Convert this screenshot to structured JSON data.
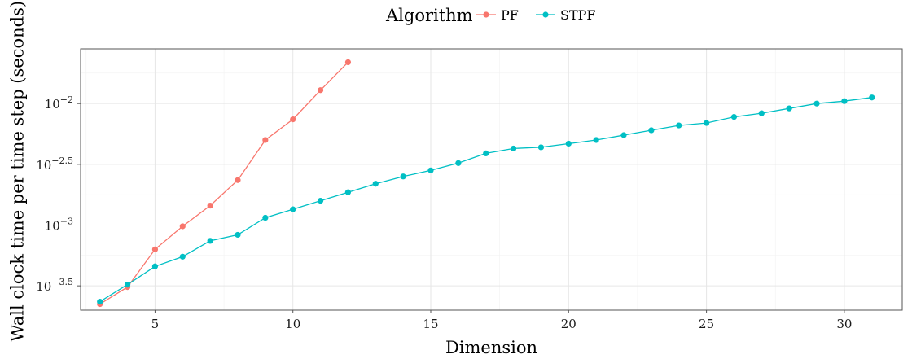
{
  "chart_data": {
    "type": "line",
    "xlabel": "Dimension",
    "ylabel": "Wall clock time per time step (seconds)",
    "xlim": [
      2.3,
      32.1
    ],
    "ylim_log10": [
      -3.7,
      -1.55
    ],
    "yscale": "log10",
    "x_ticks": [
      5,
      10,
      15,
      20,
      25,
      30
    ],
    "x_tick_labels": [
      "5",
      "10",
      "15",
      "20",
      "25",
      "30"
    ],
    "y_ticks_log10": [
      -3.5,
      -3,
      -2.5,
      -2
    ],
    "y_tick_labels": [
      {
        "base": "10",
        "exp": "−3.5"
      },
      {
        "base": "10",
        "exp": "−3"
      },
      {
        "base": "10",
        "exp": "−2.5"
      },
      {
        "base": "10",
        "exp": "−2"
      }
    ],
    "grid": true,
    "legend": {
      "title": "Algorithm",
      "position": "top"
    },
    "series": [
      {
        "name": "PF",
        "color": "#F8766D",
        "x": [
          3,
          4,
          5,
          6,
          7,
          8,
          9,
          10,
          11,
          12
        ],
        "y_log10": [
          -3.65,
          -3.51,
          -3.2,
          -3.01,
          -2.84,
          -2.63,
          -2.3,
          -2.13,
          -1.89,
          -1.66
        ]
      },
      {
        "name": "STPF",
        "color": "#00BFC4",
        "x": [
          3,
          4,
          5,
          6,
          7,
          8,
          9,
          10,
          11,
          12,
          13,
          14,
          15,
          16,
          17,
          18,
          19,
          20,
          21,
          22,
          23,
          24,
          25,
          26,
          27,
          28,
          29,
          30,
          31
        ],
        "y_log10": [
          -3.63,
          -3.49,
          -3.34,
          -3.26,
          -3.13,
          -3.08,
          -2.94,
          -2.87,
          -2.8,
          -2.73,
          -2.66,
          -2.6,
          -2.55,
          -2.49,
          -2.41,
          -2.37,
          -2.36,
          -2.33,
          -2.3,
          -2.26,
          -2.22,
          -2.18,
          -2.16,
          -2.11,
          -2.08,
          -2.04,
          -2.0,
          -1.98,
          -1.95
        ]
      }
    ]
  }
}
